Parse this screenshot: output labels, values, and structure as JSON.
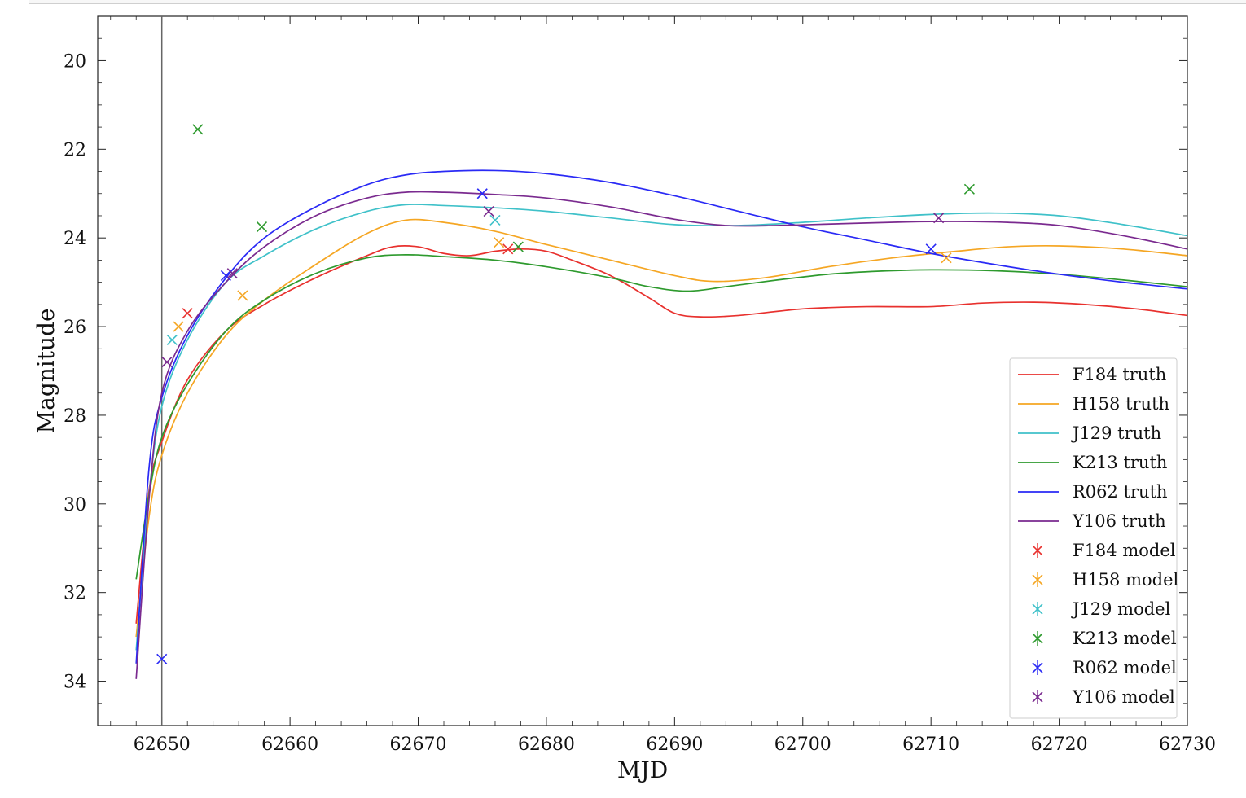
{
  "chart_data": {
    "type": "line",
    "xlabel": "MJD",
    "ylabel": "Magnitude",
    "xlim": [
      62645,
      62730
    ],
    "ylim": [
      35,
      19
    ],
    "y_inverted": true,
    "grid": false,
    "legend_position": "lower-right",
    "x_ticks": [
      62650,
      62660,
      62670,
      62680,
      62690,
      62700,
      62710,
      62720,
      62730
    ],
    "y_ticks": [
      20,
      22,
      24,
      26,
      28,
      30,
      32,
      34
    ],
    "vertical_line": {
      "x": 62650
    },
    "series": [
      {
        "name": "F184 truth",
        "kind": "line",
        "color": "#e8312e",
        "points": [
          [
            62648,
            32.7
          ],
          [
            62649,
            29.7
          ],
          [
            62650,
            28.6
          ],
          [
            62652,
            27.2
          ],
          [
            62655,
            26.1
          ],
          [
            62658,
            25.5
          ],
          [
            62662,
            24.9
          ],
          [
            62666,
            24.4
          ],
          [
            62668,
            24.2
          ],
          [
            62670,
            24.2
          ],
          [
            62672,
            24.35
          ],
          [
            62674,
            24.4
          ],
          [
            62676,
            24.3
          ],
          [
            62678,
            24.25
          ],
          [
            62680,
            24.3
          ],
          [
            62682,
            24.5
          ],
          [
            62685,
            24.85
          ],
          [
            62688,
            25.35
          ],
          [
            62690,
            25.7
          ],
          [
            62692,
            25.78
          ],
          [
            62695,
            25.75
          ],
          [
            62700,
            25.6
          ],
          [
            62705,
            25.55
          ],
          [
            62710,
            25.55
          ],
          [
            62714,
            25.47
          ],
          [
            62718,
            25.45
          ],
          [
            62722,
            25.5
          ],
          [
            62726,
            25.6
          ],
          [
            62730,
            25.75
          ]
        ]
      },
      {
        "name": "H158 truth",
        "kind": "line",
        "color": "#f5a623",
        "points": [
          [
            62648,
            33.0
          ],
          [
            62649,
            30.3
          ],
          [
            62650,
            28.9
          ],
          [
            62652,
            27.5
          ],
          [
            62655,
            26.2
          ],
          [
            62658,
            25.4
          ],
          [
            62662,
            24.6
          ],
          [
            62666,
            23.9
          ],
          [
            62669,
            23.6
          ],
          [
            62672,
            23.65
          ],
          [
            62676,
            23.85
          ],
          [
            62680,
            24.15
          ],
          [
            62685,
            24.5
          ],
          [
            62690,
            24.85
          ],
          [
            62693,
            24.98
          ],
          [
            62697,
            24.9
          ],
          [
            62702,
            24.65
          ],
          [
            62707,
            24.45
          ],
          [
            62712,
            24.3
          ],
          [
            62716,
            24.2
          ],
          [
            62720,
            24.18
          ],
          [
            62725,
            24.25
          ],
          [
            62730,
            24.4
          ]
        ]
      },
      {
        "name": "J129 truth",
        "kind": "line",
        "color": "#3fc1c9",
        "points": [
          [
            62648,
            33.3
          ],
          [
            62649,
            29.8
          ],
          [
            62650,
            27.8
          ],
          [
            62652,
            26.3
          ],
          [
            62655,
            25.0
          ],
          [
            62658,
            24.4
          ],
          [
            62662,
            23.8
          ],
          [
            62666,
            23.4
          ],
          [
            62669,
            23.25
          ],
          [
            62672,
            23.27
          ],
          [
            62676,
            23.32
          ],
          [
            62680,
            23.4
          ],
          [
            62685,
            23.55
          ],
          [
            62690,
            23.7
          ],
          [
            62695,
            23.72
          ],
          [
            62700,
            23.65
          ],
          [
            62705,
            23.55
          ],
          [
            62710,
            23.47
          ],
          [
            62715,
            23.44
          ],
          [
            62720,
            23.5
          ],
          [
            62725,
            23.7
          ],
          [
            62730,
            23.95
          ]
        ]
      },
      {
        "name": "K213 truth",
        "kind": "line",
        "color": "#2e9a2e",
        "points": [
          [
            62648,
            31.7
          ],
          [
            62649,
            29.8
          ],
          [
            62650,
            28.5
          ],
          [
            62652,
            27.3
          ],
          [
            62655,
            26.1
          ],
          [
            62658,
            25.4
          ],
          [
            62662,
            24.8
          ],
          [
            62666,
            24.45
          ],
          [
            62669,
            24.38
          ],
          [
            62672,
            24.42
          ],
          [
            62676,
            24.5
          ],
          [
            62680,
            24.65
          ],
          [
            62685,
            24.9
          ],
          [
            62688,
            25.1
          ],
          [
            62691,
            25.2
          ],
          [
            62694,
            25.1
          ],
          [
            62698,
            24.95
          ],
          [
            62702,
            24.82
          ],
          [
            62706,
            24.75
          ],
          [
            62710,
            24.72
          ],
          [
            62715,
            24.74
          ],
          [
            62720,
            24.82
          ],
          [
            62725,
            24.95
          ],
          [
            62730,
            25.1
          ]
        ]
      },
      {
        "name": "R062 truth",
        "kind": "line",
        "color": "#2a2af5",
        "points": [
          [
            62648,
            33.6
          ],
          [
            62649,
            29.2
          ],
          [
            62650,
            27.6
          ],
          [
            62652,
            26.2
          ],
          [
            62655,
            24.9
          ],
          [
            62658,
            24.0
          ],
          [
            62662,
            23.3
          ],
          [
            62666,
            22.8
          ],
          [
            62669,
            22.58
          ],
          [
            62672,
            22.5
          ],
          [
            62676,
            22.48
          ],
          [
            62680,
            22.55
          ],
          [
            62685,
            22.75
          ],
          [
            62690,
            23.05
          ],
          [
            62695,
            23.4
          ],
          [
            62700,
            23.75
          ],
          [
            62705,
            24.05
          ],
          [
            62710,
            24.35
          ],
          [
            62715,
            24.6
          ],
          [
            62720,
            24.82
          ],
          [
            62725,
            25.0
          ],
          [
            62730,
            25.15
          ]
        ]
      },
      {
        "name": "Y106 truth",
        "kind": "line",
        "color": "#7a2a8f",
        "points": [
          [
            62648,
            33.95
          ],
          [
            62649,
            29.9
          ],
          [
            62650,
            27.5
          ],
          [
            62652,
            26.1
          ],
          [
            62655,
            25.0
          ],
          [
            62658,
            24.2
          ],
          [
            62662,
            23.5
          ],
          [
            62666,
            23.1
          ],
          [
            62669,
            22.97
          ],
          [
            62672,
            22.97
          ],
          [
            62676,
            23.02
          ],
          [
            62680,
            23.1
          ],
          [
            62685,
            23.3
          ],
          [
            62690,
            23.58
          ],
          [
            62694,
            23.72
          ],
          [
            62698,
            23.72
          ],
          [
            62703,
            23.68
          ],
          [
            62708,
            23.64
          ],
          [
            62712,
            23.63
          ],
          [
            62716,
            23.65
          ],
          [
            62720,
            23.72
          ],
          [
            62725,
            23.95
          ],
          [
            62730,
            24.25
          ]
        ]
      },
      {
        "name": "F184 model",
        "kind": "marker",
        "color": "#e8312e",
        "points": [
          [
            62652.0,
            25.7
          ],
          [
            62677.0,
            24.25
          ]
        ]
      },
      {
        "name": "H158 model",
        "kind": "marker",
        "color": "#f5a623",
        "points": [
          [
            62651.3,
            26.0
          ],
          [
            62656.3,
            25.3
          ],
          [
            62676.3,
            24.1
          ],
          [
            62711.2,
            24.45
          ]
        ]
      },
      {
        "name": "J129 model",
        "kind": "marker",
        "color": "#3fc1c9",
        "points": [
          [
            62650.8,
            26.3
          ],
          [
            62676.0,
            23.6
          ]
        ]
      },
      {
        "name": "K213 model",
        "kind": "marker",
        "color": "#2e9a2e",
        "points": [
          [
            62652.8,
            21.55
          ],
          [
            62657.8,
            23.75
          ],
          [
            62677.8,
            24.2
          ],
          [
            62713.0,
            22.9
          ]
        ]
      },
      {
        "name": "R062 model",
        "kind": "marker",
        "color": "#2a2af5",
        "points": [
          [
            62650.0,
            33.5
          ],
          [
            62655.0,
            24.85
          ],
          [
            62675.0,
            23.0
          ],
          [
            62710.0,
            24.25
          ]
        ]
      },
      {
        "name": "Y106 model",
        "kind": "marker",
        "color": "#7a2a8f",
        "points": [
          [
            62650.4,
            26.8
          ],
          [
            62655.5,
            24.8
          ],
          [
            62675.5,
            23.4
          ],
          [
            62710.6,
            23.55
          ]
        ]
      }
    ]
  }
}
